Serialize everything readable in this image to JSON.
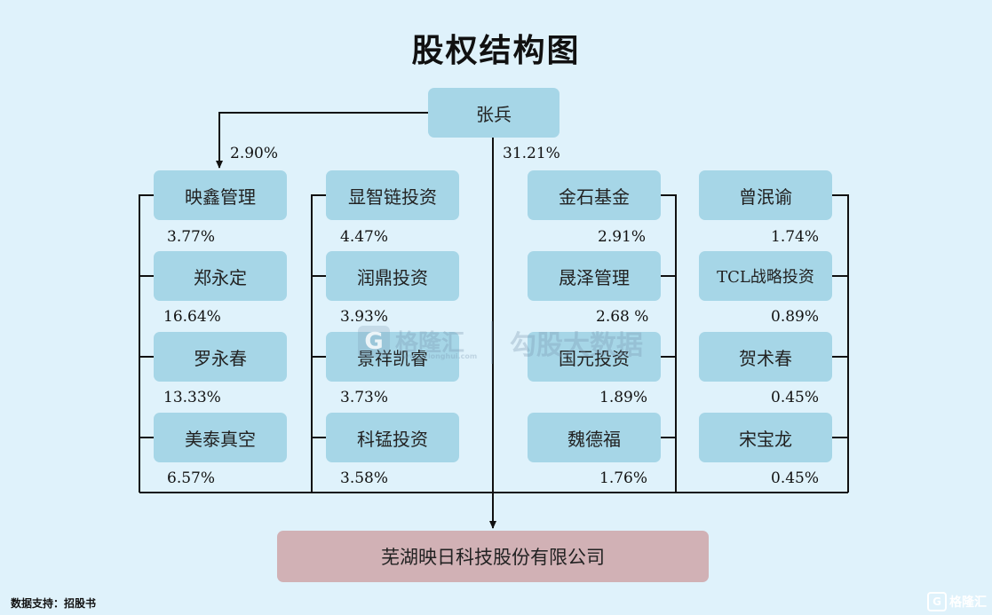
{
  "title": "股权结构图",
  "controller": {
    "name": "张兵",
    "direct_pct": "31.21%",
    "via_pct": "2.90%"
  },
  "target": "芜湖映日科技股份有限公司",
  "shareholder_columns": [
    [
      {
        "name": "映鑫管理",
        "pct": "3.77%"
      },
      {
        "name": "郑永定",
        "pct": "16.64%"
      },
      {
        "name": "罗永春",
        "pct": "13.33%"
      },
      {
        "name": "美泰真空",
        "pct": "6.57%"
      }
    ],
    [
      {
        "name": "显智链投资",
        "pct": "4.47%"
      },
      {
        "name": "润鼎投资",
        "pct": "3.93%"
      },
      {
        "name": "景祥凯睿",
        "pct": "3.73%"
      },
      {
        "name": "科锰投资",
        "pct": "3.58%"
      }
    ],
    [
      {
        "name": "金石基金",
        "pct": "2.91%"
      },
      {
        "name": "晟泽管理",
        "pct": "2.68 %"
      },
      {
        "name": "国元投资",
        "pct": "1.89%"
      },
      {
        "name": "魏德福",
        "pct": "1.76%"
      }
    ],
    [
      {
        "name": "曾泯谕",
        "pct": "1.74%"
      },
      {
        "name": "TCL战略投资",
        "pct": "0.89%"
      },
      {
        "name": "贺术春",
        "pct": "0.45%"
      },
      {
        "name": "宋宝龙",
        "pct": "0.45%"
      }
    ]
  ],
  "source": "数据支持：招股书",
  "watermark": {
    "brand": "格隆汇",
    "site": "www.gelonghui.com",
    "product": "勾股大数据"
  },
  "corner_logo": {
    "brand": "格隆汇",
    "mark": "G"
  },
  "colors": {
    "background": "#dff2fb",
    "shareholder_box": "#a6d6e7",
    "target_box": "#d1b1b5",
    "line": "#111111"
  }
}
